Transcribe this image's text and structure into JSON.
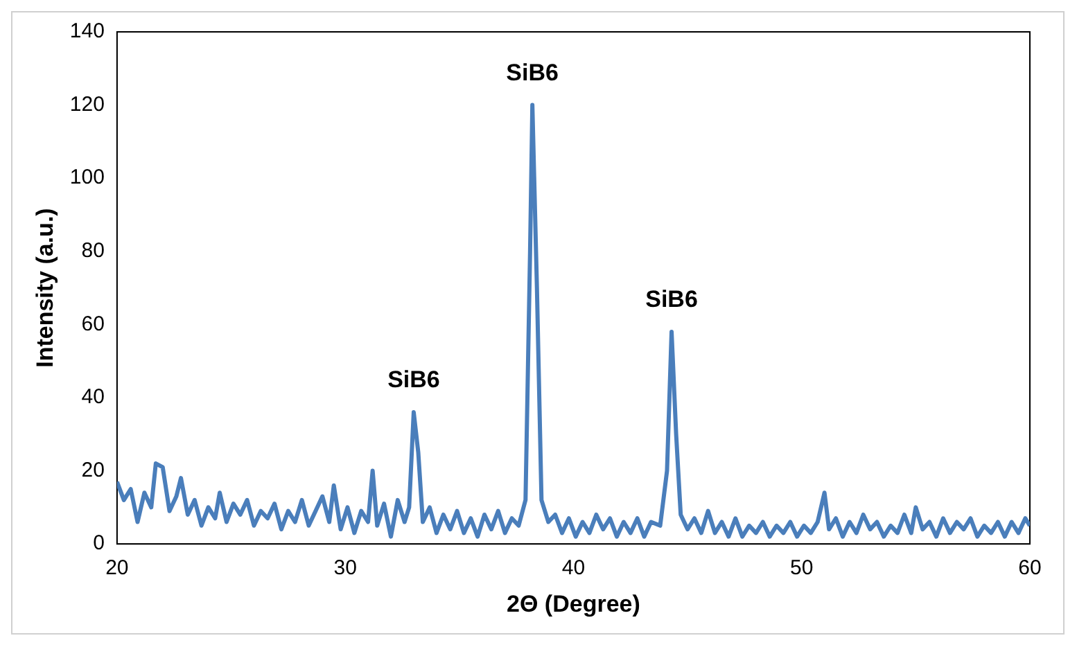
{
  "chart_data": {
    "type": "line",
    "xlabel": "2Θ (Degree)",
    "ylabel": "Intensity (a.u.)",
    "color": "#4a7ebb",
    "marker": "none",
    "xlim": [
      20,
      60
    ],
    "xticks": [
      20,
      30,
      40,
      50,
      60
    ],
    "ylim": [
      0,
      140
    ],
    "yticks": [
      0,
      20,
      40,
      60,
      80,
      100,
      120,
      140
    ],
    "x": [
      20,
      20.3,
      20.6,
      20.9,
      21.2,
      21.5,
      21.7,
      22.0,
      22.3,
      22.6,
      22.8,
      23.1,
      23.4,
      23.7,
      24.0,
      24.3,
      24.5,
      24.8,
      25.1,
      25.4,
      25.7,
      26.0,
      26.3,
      26.6,
      26.9,
      27.2,
      27.5,
      27.8,
      28.1,
      28.4,
      28.7,
      29.0,
      29.3,
      29.5,
      29.8,
      30.1,
      30.4,
      30.7,
      31.0,
      31.2,
      31.4,
      31.7,
      32.0,
      32.3,
      32.6,
      32.8,
      33.0,
      33.2,
      33.4,
      33.7,
      34.0,
      34.3,
      34.6,
      34.9,
      35.2,
      35.5,
      35.8,
      36.1,
      36.4,
      36.7,
      37.0,
      37.3,
      37.6,
      37.9,
      38.1,
      38.2,
      38.4,
      38.6,
      38.9,
      39.2,
      39.5,
      39.8,
      40.1,
      40.4,
      40.7,
      41.0,
      41.3,
      41.6,
      41.9,
      42.2,
      42.5,
      42.8,
      43.1,
      43.4,
      43.8,
      44.1,
      44.3,
      44.5,
      44.7,
      45.0,
      45.3,
      45.6,
      45.9,
      46.2,
      46.5,
      46.8,
      47.1,
      47.4,
      47.7,
      48.0,
      48.3,
      48.6,
      48.9,
      49.2,
      49.5,
      49.8,
      50.1,
      50.4,
      50.7,
      51.0,
      51.2,
      51.5,
      51.8,
      52.1,
      52.4,
      52.7,
      53.0,
      53.3,
      53.6,
      53.9,
      54.2,
      54.5,
      54.8,
      55.0,
      55.3,
      55.6,
      55.9,
      56.2,
      56.5,
      56.8,
      57.1,
      57.4,
      57.7,
      58.0,
      58.3,
      58.6,
      58.9,
      59.2,
      59.5,
      59.8,
      60
    ],
    "values": [
      17,
      12,
      15,
      6,
      14,
      10,
      22,
      21,
      9,
      13,
      18,
      8,
      12,
      5,
      10,
      7,
      14,
      6,
      11,
      8,
      12,
      5,
      9,
      7,
      11,
      4,
      9,
      6,
      12,
      5,
      9,
      13,
      6,
      16,
      4,
      10,
      3,
      9,
      6,
      20,
      5,
      11,
      2,
      12,
      6,
      10,
      36,
      25,
      6,
      10,
      3,
      8,
      4,
      9,
      3,
      7,
      2,
      8,
      4,
      9,
      3,
      7,
      5,
      12,
      80,
      120,
      70,
      12,
      6,
      8,
      3,
      7,
      2,
      6,
      3,
      8,
      4,
      7,
      2,
      6,
      3,
      7,
      2,
      6,
      5,
      20,
      58,
      30,
      8,
      4,
      7,
      3,
      9,
      3,
      6,
      2,
      7,
      2,
      5,
      3,
      6,
      2,
      5,
      3,
      6,
      2,
      5,
      3,
      6,
      14,
      4,
      7,
      2,
      6,
      3,
      8,
      4,
      6,
      2,
      5,
      3,
      8,
      3,
      10,
      4,
      6,
      2,
      7,
      3,
      6,
      4,
      7,
      2,
      5,
      3,
      6,
      2,
      6,
      3,
      7,
      5
    ],
    "annotations": [
      {
        "text": "SiB6",
        "x": 33,
        "y": 36
      },
      {
        "text": "SiB6",
        "x": 38.2,
        "y": 120
      },
      {
        "text": "SiB6",
        "x": 44.3,
        "y": 58
      }
    ]
  }
}
